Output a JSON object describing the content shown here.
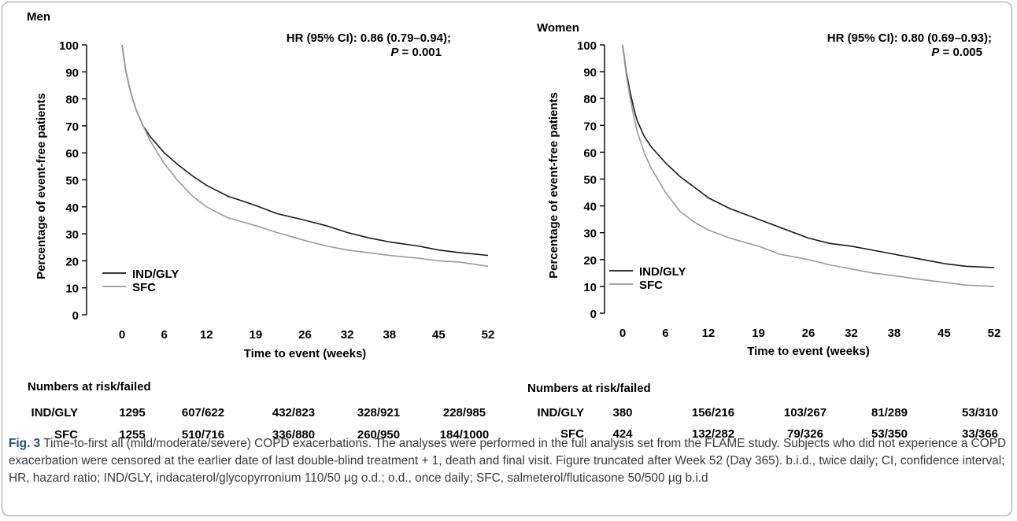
{
  "chart_data": [
    {
      "type": "line",
      "title": "Men",
      "xlabel": "Time to event (weeks)",
      "ylabel": "Percentage of event-free patients",
      "xlim": [
        0,
        52
      ],
      "ylim": [
        0,
        100
      ],
      "x_ticks": [
        0,
        6,
        12,
        19,
        26,
        32,
        38,
        45,
        52
      ],
      "y_ticks": [
        0,
        10,
        20,
        30,
        40,
        50,
        60,
        70,
        80,
        90,
        100
      ],
      "annotation_line1": "HR (95% CI): 0.86 (0.79–0.94);",
      "annotation_p": "P",
      "annotation_p_value": " = 0.001",
      "legend_position": "bottom-left",
      "grid": false,
      "series": [
        {
          "name": "IND/GLY",
          "color": "#1a1a1a",
          "x": [
            0,
            0.5,
            1,
            1.5,
            2,
            3,
            4,
            6,
            8,
            10,
            12,
            15,
            19,
            22,
            26,
            29,
            32,
            35,
            38,
            42,
            45,
            48,
            52
          ],
          "y": [
            100,
            91,
            85,
            80,
            76,
            70,
            66,
            60,
            55.5,
            51.5,
            48,
            44,
            40.5,
            37.5,
            35,
            33,
            30.5,
            28.5,
            27,
            25.5,
            24,
            23,
            22
          ]
        },
        {
          "name": "SFC",
          "color": "#9a9a9a",
          "x": [
            0,
            0.5,
            1,
            1.5,
            2,
            3,
            4,
            6,
            8,
            10,
            12,
            15,
            19,
            22,
            26,
            29,
            32,
            35,
            38,
            42,
            45,
            48,
            52
          ],
          "y": [
            100,
            91,
            85,
            80,
            76,
            70,
            64.5,
            56,
            49.5,
            44,
            40,
            36,
            33,
            30.5,
            27.5,
            25.5,
            24,
            23,
            22,
            21,
            20,
            19.5,
            18
          ]
        }
      ]
    },
    {
      "type": "line",
      "title": "Women",
      "xlabel": "Time to event (weeks)",
      "ylabel": "Percentage of event-free patients",
      "xlim": [
        0,
        52
      ],
      "ylim": [
        0,
        100
      ],
      "x_ticks": [
        0,
        6,
        12,
        19,
        26,
        32,
        38,
        45,
        52
      ],
      "y_ticks": [
        0,
        10,
        20,
        30,
        40,
        50,
        60,
        70,
        80,
        90,
        100
      ],
      "annotation_line1": "HR (95% CI): 0.80 (0.69–0.93);",
      "annotation_p": "P",
      "annotation_p_value": " = 0.005",
      "legend_position": "bottom-left",
      "grid": false,
      "series": [
        {
          "name": "IND/GLY",
          "color": "#1a1a1a",
          "x": [
            0,
            0.5,
            1,
            1.5,
            2,
            3,
            4,
            6,
            8,
            10,
            12,
            15,
            19,
            22,
            26,
            29,
            32,
            35,
            38,
            42,
            45,
            48,
            52
          ],
          "y": [
            100,
            90,
            83,
            77,
            72,
            66,
            62,
            56,
            51,
            47,
            43,
            39,
            35,
            32,
            28,
            26,
            25,
            23.5,
            22,
            20,
            18.5,
            17.5,
            17
          ]
        },
        {
          "name": "SFC",
          "color": "#9a9a9a",
          "x": [
            0,
            0.5,
            1,
            1.5,
            2,
            3,
            4,
            6,
            8,
            10,
            12,
            15,
            19,
            22,
            26,
            29,
            32,
            35,
            38,
            42,
            45,
            48,
            52
          ],
          "y": [
            100,
            89,
            81,
            74,
            68,
            60,
            54,
            45,
            38,
            34,
            31,
            28,
            25,
            22,
            20,
            18,
            16.5,
            15,
            14,
            12.5,
            11.5,
            10.5,
            10
          ]
        }
      ]
    }
  ],
  "risk_tables": [
    {
      "heading": "Numbers at risk/failed",
      "rows": [
        {
          "label": "IND/GLY",
          "values": [
            "1295",
            "607/622",
            "432/823",
            "328/921",
            "228/985"
          ]
        },
        {
          "label": "SFC",
          "values": [
            "1255",
            "510/716",
            "336/880",
            "260/950",
            "184/1000"
          ]
        }
      ]
    },
    {
      "heading": "Numbers at risk/failed",
      "rows": [
        {
          "label": "IND/GLY",
          "values": [
            "380",
            "156/216",
            "103/267",
            "81/289",
            "53/310"
          ]
        },
        {
          "label": "SFC",
          "values": [
            "424",
            "132/282",
            "79/326",
            "53/350",
            "33/366"
          ]
        }
      ]
    }
  ],
  "caption": {
    "label": "Fig. 3",
    "text": " Time-to-first all (mild/moderate/severe) COPD exacerbations. The analyses were performed in the full analysis set from the FLAME study. Subjects who did not experience a COPD exacerbation were censored at the earlier date of last double-blind treatment + 1, death and final visit. Figure truncated after Week 52 (Day 365). b.i.d., twice daily; CI, confidence interval; HR, hazard ratio; IND/GLY, indacaterol/glycopyrronium 110/50 µg o.d.; o.d., once daily; SFC, salmeterol/fluticasone 50/500 µg b.i.d"
  }
}
